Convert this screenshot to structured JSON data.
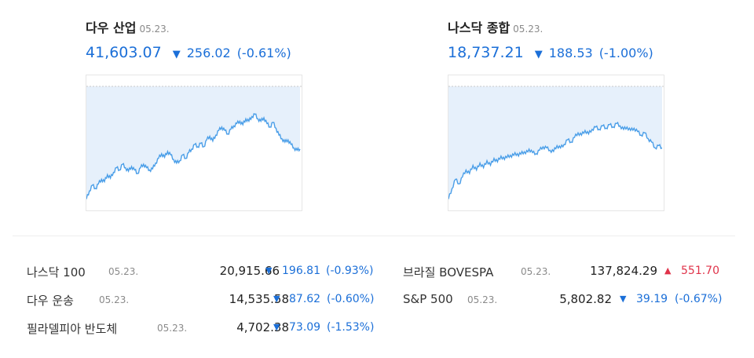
{
  "cards": [
    {
      "name": "다우 산업",
      "date": "05.23.",
      "price": "41,603.07",
      "arrow": "▼",
      "change": "256.02",
      "pct": "(-0.61%)",
      "series": [
        0.97,
        0.9,
        0.85,
        0.88,
        0.84,
        0.8,
        0.82,
        0.76,
        0.79,
        0.74,
        0.7,
        0.72,
        0.67,
        0.7,
        0.73,
        0.69,
        0.72,
        0.75,
        0.7,
        0.67,
        0.7,
        0.72,
        0.71,
        0.66,
        0.62,
        0.58,
        0.61,
        0.56,
        0.59,
        0.63,
        0.66,
        0.64,
        0.59,
        0.62,
        0.57,
        0.54,
        0.5,
        0.52,
        0.49,
        0.52,
        0.46,
        0.43,
        0.47,
        0.42,
        0.38,
        0.35,
        0.38,
        0.41,
        0.37,
        0.34,
        0.32,
        0.3,
        0.33,
        0.28,
        0.3,
        0.26,
        0.24,
        0.28,
        0.3,
        0.27,
        0.32,
        0.35,
        0.31,
        0.36,
        0.42,
        0.45,
        0.48,
        0.46,
        0.5,
        0.53,
        0.55,
        0.54
      ]
    },
    {
      "name": "나스닥 종합",
      "date": "05.23.",
      "price": "18,737.21",
      "arrow": "▼",
      "change": "188.53",
      "pct": "(-1.00%)",
      "series": [
        0.97,
        0.88,
        0.8,
        0.84,
        0.78,
        0.72,
        0.75,
        0.68,
        0.72,
        0.66,
        0.7,
        0.64,
        0.68,
        0.62,
        0.65,
        0.6,
        0.63,
        0.59,
        0.61,
        0.57,
        0.6,
        0.56,
        0.58,
        0.54,
        0.57,
        0.58,
        0.55,
        0.52,
        0.53,
        0.55,
        0.56,
        0.51,
        0.53,
        0.5,
        0.46,
        0.48,
        0.44,
        0.4,
        0.42,
        0.38,
        0.41,
        0.37,
        0.35,
        0.37,
        0.34,
        0.36,
        0.33,
        0.35,
        0.32,
        0.34,
        0.37,
        0.35,
        0.38,
        0.36,
        0.39,
        0.42,
        0.4,
        0.45,
        0.48,
        0.53,
        0.51,
        0.53
      ]
    }
  ],
  "rows": [
    {
      "name": "나스닥 100",
      "date": "05.23.",
      "value": "20,915.66",
      "dir": "down",
      "arrow": "▼",
      "change": "196.81",
      "pct": "(-0.93%)"
    },
    {
      "name": "다우 운송",
      "date": "05.23.",
      "value": "14,535.58",
      "dir": "down",
      "arrow": "▼",
      "change": "87.62",
      "pct": "(-0.60%)"
    },
    {
      "name": "필라델피아 반도체",
      "date": "05.23.",
      "value": "4,702.38",
      "dir": "down",
      "arrow": "▼",
      "change": "73.09",
      "pct": "(-1.53%)"
    },
    {
      "name": "브라질 BOVESPA",
      "date": "05.23.",
      "value": "137,824.29",
      "dir": "up",
      "arrow": "▲",
      "change": "551.70",
      "pct": ""
    },
    {
      "name": "S&P 500",
      "date": "05.23.",
      "value": "5,802.82",
      "dir": "down",
      "arrow": "▼",
      "change": "39.19",
      "pct": "(-0.67%)"
    }
  ],
  "colors": {
    "line": "#4a9ee8",
    "area": "#e6f0fb",
    "down": "#1b6fd8",
    "up": "#e0334a"
  }
}
